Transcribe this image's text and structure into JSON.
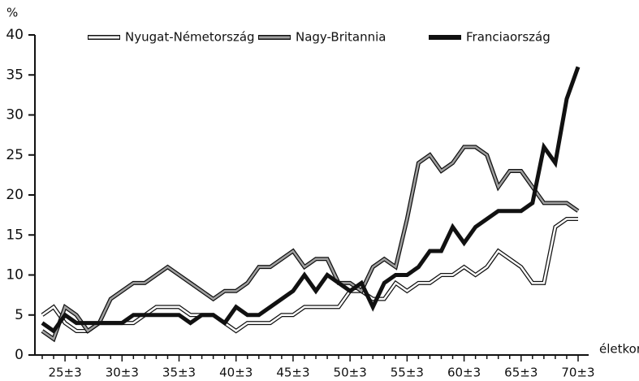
{
  "chart_data": {
    "type": "line",
    "y_label": "%",
    "x_label": "életkor",
    "categories": [
      null,
      null,
      "25±3",
      null,
      null,
      null,
      null,
      "30±3",
      null,
      null,
      null,
      null,
      "35±3",
      null,
      null,
      null,
      null,
      "40±3",
      null,
      null,
      null,
      null,
      "45±3",
      null,
      null,
      null,
      null,
      "50±3",
      null,
      null,
      null,
      null,
      "55±3",
      null,
      null,
      null,
      null,
      "60±3",
      null,
      null,
      null,
      null,
      "65±3",
      null,
      null,
      null,
      null,
      "70±3"
    ],
    "series": [
      {
        "name": "Nyugat-Németország",
        "color": "#ffffff",
        "values": [
          5,
          6,
          4,
          3,
          3,
          4,
          4,
          4,
          4,
          5,
          6,
          6,
          6,
          5,
          5,
          5,
          4,
          3,
          4,
          4,
          4,
          5,
          5,
          6,
          6,
          6,
          6,
          8,
          8,
          7,
          7,
          9,
          8,
          9,
          9,
          10,
          10,
          11,
          10,
          11,
          13,
          12,
          11,
          9,
          9,
          16,
          17,
          17
        ]
      },
      {
        "name": "Nagy-Britannia",
        "color": "#a0a0a0",
        "values": [
          3,
          2,
          6,
          5,
          3,
          4,
          7,
          8,
          9,
          9,
          10,
          11,
          10,
          9,
          8,
          7,
          8,
          8,
          9,
          11,
          11,
          12,
          13,
          11,
          12,
          12,
          9,
          9,
          8,
          11,
          12,
          11,
          17,
          24,
          25,
          23,
          24,
          26,
          26,
          25,
          21,
          23,
          23,
          21,
          19,
          19,
          19,
          18
        ]
      },
      {
        "name": "Franciaország",
        "color": "#111111",
        "values": [
          4,
          3,
          5,
          4,
          4,
          4,
          4,
          4,
          5,
          5,
          5,
          5,
          5,
          4,
          5,
          5,
          4,
          6,
          5,
          5,
          6,
          7,
          8,
          10,
          8,
          10,
          9,
          8,
          9,
          6,
          9,
          10,
          10,
          11,
          13,
          13,
          16,
          14,
          16,
          17,
          18,
          18,
          18,
          19,
          26,
          24,
          32,
          36
        ]
      }
    ],
    "ylim": [
      0,
      40
    ],
    "yticks": [
      0,
      5,
      10,
      15,
      20,
      25,
      30,
      35,
      40
    ],
    "legend": "top"
  }
}
